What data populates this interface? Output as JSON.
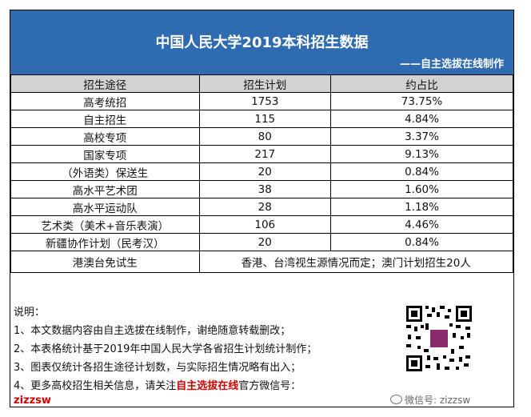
{
  "header": {
    "title": "中国人民大学2019本科招生数据",
    "credit": "——自主选拔在线制作"
  },
  "table": {
    "columns": [
      "招生途径",
      "招生计划",
      "约占比"
    ],
    "rows": [
      {
        "route": "高考统招",
        "plan": "1753",
        "ratio": "73.75%"
      },
      {
        "route": "自主招生",
        "plan": "115",
        "ratio": "4.84%"
      },
      {
        "route": "高校专项",
        "plan": "80",
        "ratio": "3.37%"
      },
      {
        "route": "国家专项",
        "plan": "217",
        "ratio": "9.13%"
      },
      {
        "route": "（外语类）保送生",
        "plan": "20",
        "ratio": "0.84%"
      },
      {
        "route": "高水平艺术团",
        "plan": "38",
        "ratio": "1.60%"
      },
      {
        "route": "高水平运动队",
        "plan": "28",
        "ratio": "1.18%"
      },
      {
        "route": "艺术类（美术+音乐表演）",
        "plan": "106",
        "ratio": "4.46%"
      },
      {
        "route": "新疆协作计划（民考汉）",
        "plan": "20",
        "ratio": "0.84%"
      }
    ],
    "special_row": {
      "route": "港澳台免试生",
      "note": "香港、台湾视生源情况而定；澳门计划招生20人"
    }
  },
  "notes": {
    "heading": "说明：",
    "items": [
      "1、本文数据内容由自主选拔在线制作，谢绝随意转载删改；",
      "2、本表格统计基于2019年中国人民大学各省招生计划统计制作；",
      "3、图表仅统计各招生途径计划数，与实际招生情况略有出入；"
    ],
    "item4_prefix": "4、更多高校招生相关信息，请关注",
    "item4_highlight": "自主选拔在线",
    "item4_suffix": "官方微信号：",
    "wechat_id": "zizzsw"
  },
  "watermark": "微信号: zizzsw",
  "colors": {
    "header_bg": "#2e6bb0",
    "table_header_bg": "#d2d2d2",
    "highlight": "#d40000"
  }
}
